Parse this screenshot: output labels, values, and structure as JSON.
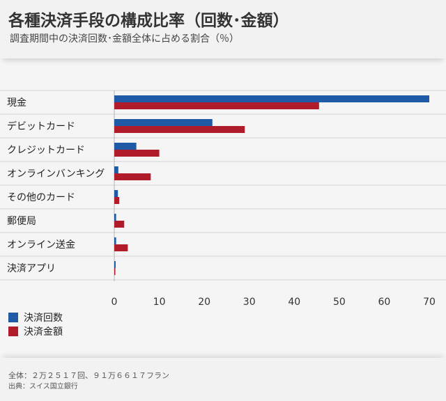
{
  "header": {
    "title": "各種決済手段の構成比率（回数･金額）",
    "subtitle": "調査期間中の決済回数･金額全体に占める割合（％）"
  },
  "colors": {
    "count": "#1f5aa6",
    "amount": "#b01c2a"
  },
  "chart_data": {
    "type": "bar",
    "orientation": "horizontal",
    "title": "各種決済手段の構成比率（回数･金額）",
    "xlabel": "",
    "ylabel": "",
    "xlim": [
      0,
      70
    ],
    "ticks": [
      "0",
      "10",
      "20",
      "30",
      "40",
      "50",
      "60",
      "70"
    ],
    "tick_values": [
      0,
      10,
      20,
      30,
      40,
      50,
      60,
      70
    ],
    "categories": [
      "現金",
      "デビットカード",
      "クレジットカード",
      "オンラインバンキング",
      "その他のカード",
      "郵便局",
      "オンライン送金",
      "決済アプリ"
    ],
    "series": [
      {
        "name": "決済回数",
        "values": [
          70.0,
          21.8,
          4.9,
          0.9,
          0.8,
          0.4,
          0.4,
          0.3
        ]
      },
      {
        "name": "決済金額",
        "values": [
          45.5,
          29.0,
          10.0,
          8.1,
          1.1,
          2.2,
          3.0,
          0.1
        ]
      }
    ],
    "legend_position": "bottom-left"
  },
  "legend": {
    "count_label": "決済回数",
    "amount_label": "決済金額"
  },
  "footer": {
    "note": "全体：２万２５１７回、９１万６６１７フラン",
    "source": "出典：スイス国立銀行"
  }
}
